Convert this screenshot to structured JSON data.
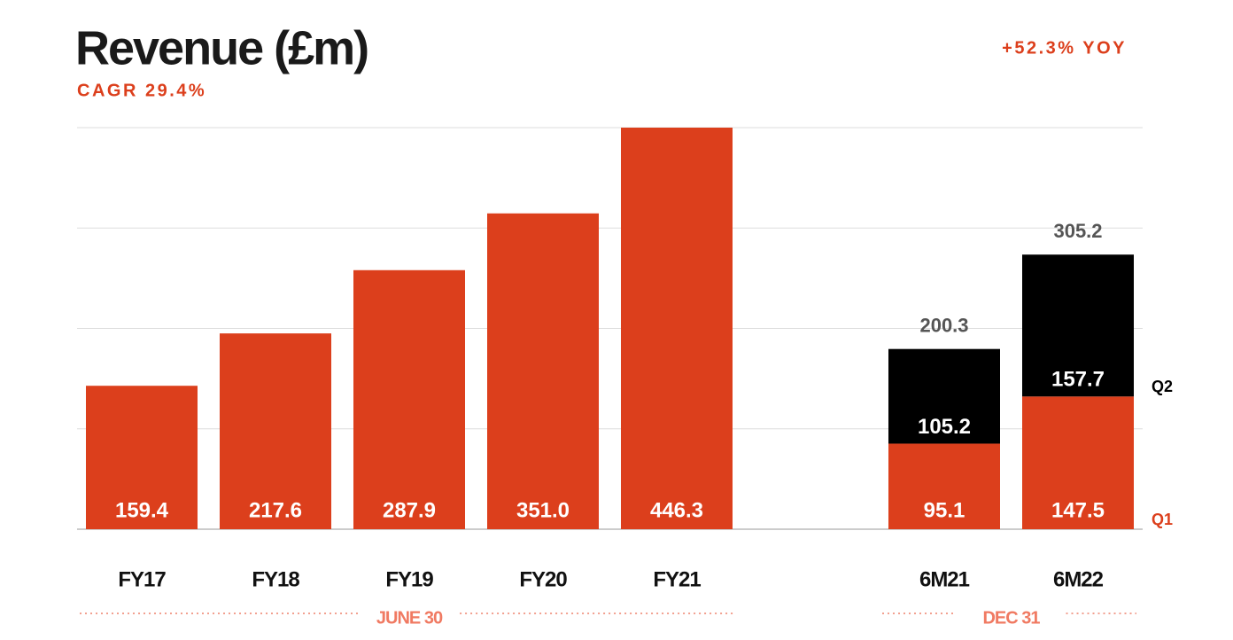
{
  "chart_data": {
    "type": "stacked_bar",
    "title": "Revenue (£m)",
    "subtitle": "CAGR 29.4%",
    "annotation": "+52.3% YOY",
    "categories": [
      "FY17",
      "FY18",
      "FY19",
      "FY20",
      "FY21",
      "6M21",
      "6M22"
    ],
    "groups": [
      "JUNE 30",
      "DEC 31"
    ],
    "series": [
      {
        "name": "Q1",
        "color": "#dc3f1c",
        "values": [
          159.4,
          217.6,
          287.9,
          351.0,
          446.3,
          95.1,
          147.5
        ],
        "value_labels": [
          "159.4",
          "217.6",
          "287.9",
          "351.0",
          "446.3",
          "95.1",
          "147.5"
        ]
      },
      {
        "name": "Q2",
        "color": "#000000",
        "values": [
          null,
          null,
          null,
          null,
          null,
          105.2,
          157.7
        ],
        "value_labels": [
          null,
          null,
          null,
          null,
          null,
          "105.2",
          "157.7"
        ]
      }
    ],
    "totals": [
      null,
      null,
      null,
      null,
      null,
      200.3,
      305.2
    ],
    "ylim": [
      0,
      446.3
    ],
    "grid": true
  }
}
